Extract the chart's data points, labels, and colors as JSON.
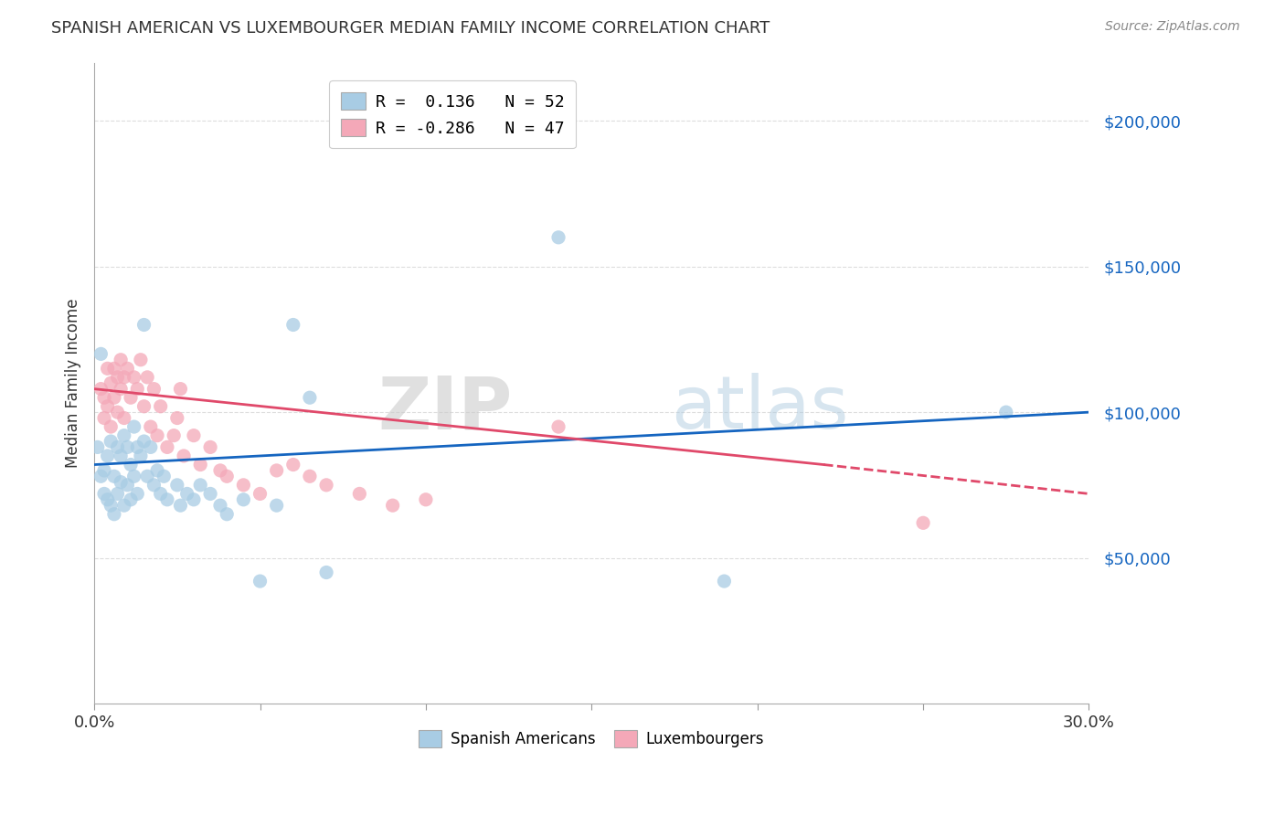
{
  "title": "SPANISH AMERICAN VS LUXEMBOURGER MEDIAN FAMILY INCOME CORRELATION CHART",
  "source": "Source: ZipAtlas.com",
  "ylabel": "Median Family Income",
  "watermark": "ZIPatlas",
  "ytick_labels": [
    "$50,000",
    "$100,000",
    "$150,000",
    "$200,000"
  ],
  "ytick_values": [
    50000,
    100000,
    150000,
    200000
  ],
  "xlim": [
    0.0,
    0.3
  ],
  "ylim": [
    0,
    220000
  ],
  "color_blue": "#a8cce4",
  "color_pink": "#f4a8b8",
  "line_blue": "#1565c0",
  "line_pink": "#e0496a",
  "spanish_americans": [
    [
      0.001,
      88000
    ],
    [
      0.002,
      120000
    ],
    [
      0.002,
      78000
    ],
    [
      0.003,
      80000
    ],
    [
      0.003,
      72000
    ],
    [
      0.004,
      85000
    ],
    [
      0.004,
      70000
    ],
    [
      0.005,
      90000
    ],
    [
      0.005,
      68000
    ],
    [
      0.006,
      78000
    ],
    [
      0.006,
      65000
    ],
    [
      0.007,
      88000
    ],
    [
      0.007,
      72000
    ],
    [
      0.008,
      85000
    ],
    [
      0.008,
      76000
    ],
    [
      0.009,
      92000
    ],
    [
      0.009,
      68000
    ],
    [
      0.01,
      88000
    ],
    [
      0.01,
      75000
    ],
    [
      0.011,
      82000
    ],
    [
      0.011,
      70000
    ],
    [
      0.012,
      95000
    ],
    [
      0.012,
      78000
    ],
    [
      0.013,
      88000
    ],
    [
      0.013,
      72000
    ],
    [
      0.014,
      85000
    ],
    [
      0.015,
      130000
    ],
    [
      0.015,
      90000
    ],
    [
      0.016,
      78000
    ],
    [
      0.017,
      88000
    ],
    [
      0.018,
      75000
    ],
    [
      0.019,
      80000
    ],
    [
      0.02,
      72000
    ],
    [
      0.021,
      78000
    ],
    [
      0.022,
      70000
    ],
    [
      0.025,
      75000
    ],
    [
      0.026,
      68000
    ],
    [
      0.028,
      72000
    ],
    [
      0.03,
      70000
    ],
    [
      0.032,
      75000
    ],
    [
      0.035,
      72000
    ],
    [
      0.038,
      68000
    ],
    [
      0.04,
      65000
    ],
    [
      0.045,
      70000
    ],
    [
      0.05,
      42000
    ],
    [
      0.055,
      68000
    ],
    [
      0.06,
      130000
    ],
    [
      0.065,
      105000
    ],
    [
      0.07,
      45000
    ],
    [
      0.14,
      160000
    ],
    [
      0.19,
      42000
    ],
    [
      0.275,
      100000
    ]
  ],
  "luxembourgers": [
    [
      0.002,
      108000
    ],
    [
      0.003,
      105000
    ],
    [
      0.003,
      98000
    ],
    [
      0.004,
      115000
    ],
    [
      0.004,
      102000
    ],
    [
      0.005,
      110000
    ],
    [
      0.005,
      95000
    ],
    [
      0.006,
      115000
    ],
    [
      0.006,
      105000
    ],
    [
      0.007,
      112000
    ],
    [
      0.007,
      100000
    ],
    [
      0.008,
      118000
    ],
    [
      0.008,
      108000
    ],
    [
      0.009,
      112000
    ],
    [
      0.009,
      98000
    ],
    [
      0.01,
      115000
    ],
    [
      0.011,
      105000
    ],
    [
      0.012,
      112000
    ],
    [
      0.013,
      108000
    ],
    [
      0.014,
      118000
    ],
    [
      0.015,
      102000
    ],
    [
      0.016,
      112000
    ],
    [
      0.017,
      95000
    ],
    [
      0.018,
      108000
    ],
    [
      0.019,
      92000
    ],
    [
      0.02,
      102000
    ],
    [
      0.022,
      88000
    ],
    [
      0.024,
      92000
    ],
    [
      0.025,
      98000
    ],
    [
      0.026,
      108000
    ],
    [
      0.027,
      85000
    ],
    [
      0.03,
      92000
    ],
    [
      0.032,
      82000
    ],
    [
      0.035,
      88000
    ],
    [
      0.038,
      80000
    ],
    [
      0.04,
      78000
    ],
    [
      0.045,
      75000
    ],
    [
      0.05,
      72000
    ],
    [
      0.055,
      80000
    ],
    [
      0.06,
      82000
    ],
    [
      0.065,
      78000
    ],
    [
      0.07,
      75000
    ],
    [
      0.08,
      72000
    ],
    [
      0.09,
      68000
    ],
    [
      0.1,
      70000
    ],
    [
      0.14,
      95000
    ],
    [
      0.25,
      62000
    ]
  ]
}
